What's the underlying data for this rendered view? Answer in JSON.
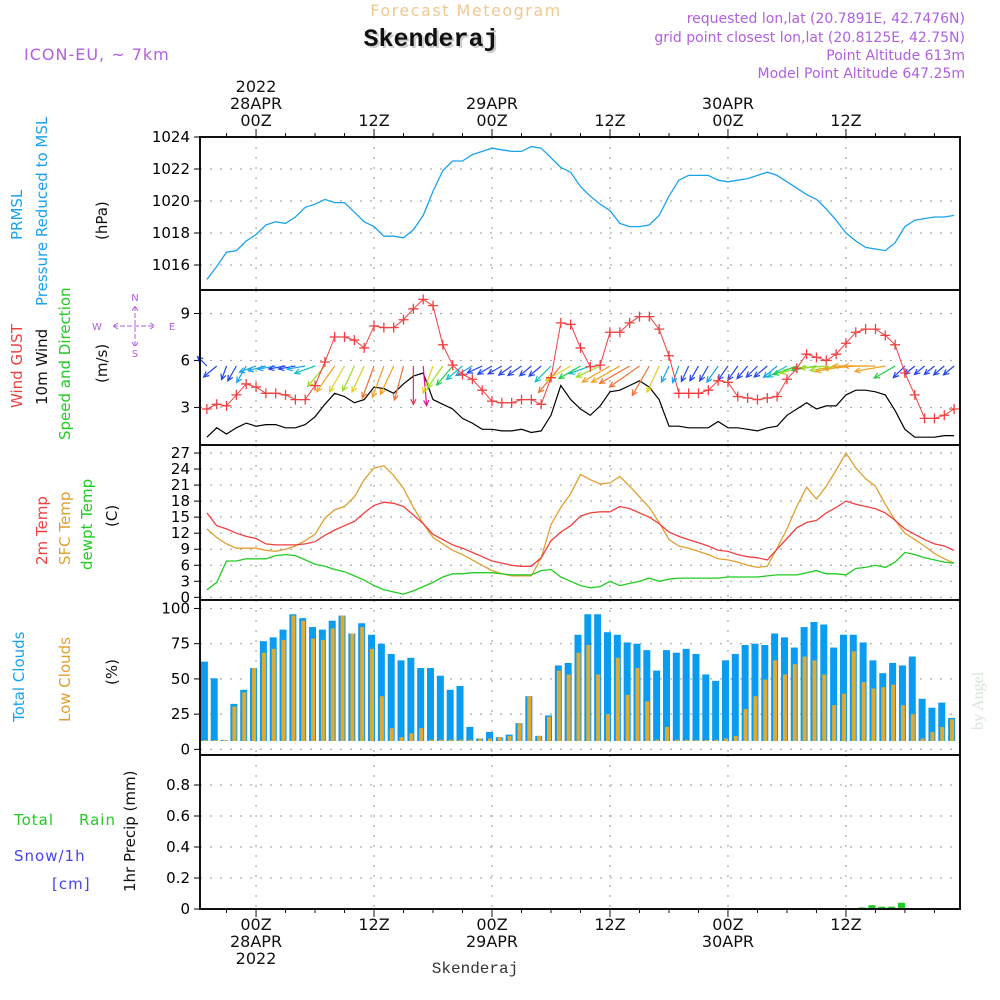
{
  "header": {
    "title": "Forecast Meteogram",
    "location": "Skenderaj",
    "model": "ICON-EU, ~ 7km",
    "requested": "requested lon,lat (20.7891E, 42.7476N)",
    "gridpoint": "grid point closest lon,lat (20.8125E, 42.75N)",
    "altitude": "Point Altitude 613m",
    "model_altitude": "Model Point Altitude 647.25m",
    "footer_location": "Skenderaj",
    "credit": "by Angel"
  },
  "colors": {
    "pressure": "#1aa3ec",
    "gust": "#f04040",
    "wind10m": "#000000",
    "temp2m": "#f04040",
    "sfc": "#e0a030",
    "dewpt": "#22cc22",
    "total_clouds": "#0a9cf0",
    "low_clouds": "#e0aa30",
    "rain": "#22cc22",
    "snow": "#4444ee",
    "labels_purple": "#b060e0",
    "title_orange": "#f0c890"
  },
  "time_axis": {
    "top_labels": [
      {
        "hour": 0,
        "lines": [
          "2022",
          "28APR",
          "00Z"
        ]
      },
      {
        "hour": 12,
        "lines": [
          "12Z"
        ]
      },
      {
        "hour": 24,
        "lines": [
          "29APR",
          "00Z"
        ]
      },
      {
        "hour": 36,
        "lines": [
          "12Z"
        ]
      },
      {
        "hour": 48,
        "lines": [
          "30APR",
          "00Z"
        ]
      },
      {
        "hour": 60,
        "lines": [
          "12Z"
        ]
      }
    ],
    "bottom_labels": [
      {
        "hour": 0,
        "lines": [
          "00Z",
          "28APR",
          "2022"
        ]
      },
      {
        "hour": 12,
        "lines": [
          "12Z"
        ]
      },
      {
        "hour": 24,
        "lines": [
          "00Z",
          "29APR"
        ]
      },
      {
        "hour": 36,
        "lines": [
          "12Z"
        ]
      },
      {
        "hour": 48,
        "lines": [
          "00Z",
          "30APR"
        ]
      },
      {
        "hour": 60,
        "lines": [
          "12Z"
        ]
      }
    ],
    "range_hours": [
      -5.7,
      71.6
    ],
    "first_hour": -5
  },
  "chart_data": [
    {
      "type": "line",
      "title": "PRMSL Pressure Reduced to MSL",
      "ylabel": "(hPa)",
      "ylim": [
        1014.6,
        1024
      ],
      "yticks": [
        1016,
        1018,
        1020,
        1022,
        1024
      ],
      "grid": true,
      "series": [
        {
          "name": "PRMSL",
          "values": [
            1015.1,
            1015.9,
            1016.8,
            1016.9,
            1017.5,
            1017.9,
            1018.5,
            1018.7,
            1018.6,
            1019.0,
            1019.6,
            1019.8,
            1020.1,
            1019.9,
            1019.9,
            1019.3,
            1018.7,
            1018.4,
            1017.8,
            1017.8,
            1017.7,
            1018.2,
            1019.1,
            1020.6,
            1021.9,
            1022.5,
            1022.5,
            1022.9,
            1023.1,
            1023.3,
            1023.2,
            1023.1,
            1023.1,
            1023.4,
            1023.3,
            1022.7,
            1022.1,
            1021.8,
            1020.9,
            1020.3,
            1019.8,
            1019.4,
            1018.6,
            1018.4,
            1018.4,
            1018.5,
            1019.1,
            1020.3,
            1021.3,
            1021.6,
            1021.6,
            1021.6,
            1021.3,
            1021.2,
            1021.3,
            1021.4,
            1021.6,
            1021.8,
            1021.6,
            1021.2,
            1020.8,
            1020.4,
            1020.1,
            1019.5,
            1018.8,
            1018.0,
            1017.5,
            1017.1,
            1017.0,
            1016.9,
            1017.4,
            1018.4,
            1018.8,
            1018.9,
            1019.0,
            1019.0,
            1019.1
          ]
        }
      ]
    },
    {
      "type": "line",
      "title": "Wind GUST / 10m Wind Speed and Direction",
      "ylabel": "(m/s)",
      "ylim": [
        0.6,
        10.5
      ],
      "yticks": [
        3,
        6,
        9
      ],
      "grid": true,
      "compass": {
        "n": "N",
        "s": "S",
        "w": "W",
        "e": "E"
      },
      "series": [
        {
          "name": "Wind GUST",
          "values": [
            2.9,
            3.2,
            3.1,
            3.8,
            4.5,
            4.3,
            3.9,
            3.9,
            3.8,
            3.5,
            3.5,
            4.4,
            5.9,
            7.5,
            7.5,
            7.3,
            6.8,
            8.2,
            8.1,
            8.1,
            8.6,
            9.3,
            9.9,
            9.5,
            7.0,
            5.7,
            5.1,
            4.8,
            4.1,
            3.4,
            3.3,
            3.3,
            3.5,
            3.5,
            3.2,
            4.9,
            8.4,
            8.3,
            6.8,
            5.6,
            5.7,
            7.8,
            7.8,
            8.4,
            8.8,
            8.8,
            8.0,
            6.3,
            3.9,
            3.9,
            3.9,
            4.1,
            4.7,
            4.6,
            3.7,
            3.6,
            3.5,
            3.6,
            3.7,
            4.8,
            5.5,
            6.4,
            6.2,
            6.0,
            6.4,
            7.1,
            7.8,
            8.0,
            8.0,
            7.6,
            7.0,
            5.2,
            3.8,
            2.3,
            2.3,
            2.5,
            2.9
          ]
        },
        {
          "name": "10m Wind",
          "values": [
            1.1,
            1.7,
            1.3,
            1.7,
            2.0,
            1.8,
            1.9,
            1.9,
            1.7,
            1.7,
            1.9,
            2.4,
            3.2,
            3.9,
            3.7,
            3.3,
            3.5,
            4.3,
            4.2,
            3.9,
            4.5,
            5.0,
            5.2,
            3.5,
            3.2,
            2.9,
            2.3,
            2.0,
            1.6,
            1.6,
            1.5,
            1.5,
            1.6,
            1.4,
            1.5,
            2.5,
            4.4,
            3.5,
            2.9,
            2.5,
            3.1,
            4.0,
            4.1,
            4.4,
            4.7,
            4.3,
            3.5,
            1.8,
            1.8,
            1.7,
            1.7,
            1.7,
            2.1,
            1.7,
            1.7,
            1.6,
            1.5,
            1.7,
            1.8,
            2.5,
            2.9,
            3.3,
            2.9,
            3.1,
            3.1,
            3.8,
            4.1,
            4.1,
            4.0,
            3.8,
            2.8,
            1.6,
            1.1,
            1.1,
            1.1,
            1.2,
            1.2
          ]
        },
        {
          "name": "Wind direction (deg, from)",
          "values": [
            135,
            50,
            20,
            30,
            30,
            70,
            75,
            80,
            80,
            80,
            80,
            70,
            40,
            35,
            30,
            25,
            25,
            20,
            20,
            25,
            15,
            0,
            355,
            20,
            35,
            40,
            50,
            60,
            65,
            60,
            60,
            55,
            55,
            50,
            50,
            45,
            40,
            60,
            60,
            70,
            65,
            60,
            60,
            60,
            55,
            30,
            25,
            25,
            20,
            25,
            30,
            30,
            35,
            35,
            35,
            40,
            45,
            50,
            50,
            60,
            70,
            75,
            80,
            85,
            80,
            80,
            85,
            90,
            90,
            80,
            60,
            45,
            50,
            50,
            50,
            50,
            50
          ]
        }
      ]
    },
    {
      "type": "line",
      "title": "2m Temp / SFC Temp / dewpt Temp",
      "ylabel": "(C)",
      "ylim": [
        -0.5,
        28.5
      ],
      "yticks": [
        0,
        3,
        6,
        9,
        12,
        15,
        18,
        21,
        24,
        27
      ],
      "grid": true,
      "series": [
        {
          "name": "2m Temp",
          "values": [
            15.8,
            13.4,
            12.8,
            12.0,
            11.4,
            11.0,
            10.0,
            9.8,
            9.8,
            9.8,
            10.0,
            10.4,
            11.6,
            12.6,
            13.4,
            14.2,
            15.8,
            17.2,
            17.8,
            17.6,
            17.0,
            15.4,
            13.8,
            11.8,
            10.8,
            9.8,
            9.2,
            8.4,
            7.6,
            6.8,
            6.4,
            6.0,
            5.8,
            5.8,
            7.4,
            10.6,
            12.2,
            13.4,
            15.2,
            15.8,
            16.0,
            16.0,
            17.0,
            16.6,
            15.8,
            15.0,
            13.8,
            12.2,
            11.4,
            10.8,
            10.2,
            9.6,
            8.8,
            8.6,
            8.0,
            7.6,
            7.4,
            7.0,
            9.0,
            11.0,
            13.0,
            14.0,
            14.4,
            15.8,
            16.8,
            18.0,
            17.4,
            17.0,
            16.6,
            15.8,
            14.4,
            12.8,
            11.8,
            10.8,
            10.0,
            9.6,
            8.8
          ]
        },
        {
          "name": "SFC Temp",
          "values": [
            12.8,
            11.2,
            10.0,
            9.2,
            9.2,
            9.2,
            8.8,
            8.6,
            9.0,
            9.6,
            10.6,
            11.8,
            14.8,
            16.4,
            17.0,
            18.8,
            22.0,
            24.2,
            24.6,
            22.8,
            20.4,
            16.8,
            13.8,
            11.2,
            10.0,
            8.8,
            8.0,
            7.0,
            6.0,
            5.0,
            4.4,
            4.0,
            4.0,
            4.0,
            7.4,
            13.6,
            16.8,
            19.4,
            23.0,
            22.0,
            21.2,
            21.4,
            22.6,
            20.8,
            18.8,
            16.8,
            14.0,
            10.8,
            9.6,
            9.2,
            8.6,
            8.0,
            7.2,
            7.0,
            6.6,
            6.0,
            5.6,
            5.8,
            9.2,
            12.8,
            17.0,
            20.6,
            18.4,
            20.8,
            23.8,
            27.0,
            24.2,
            22.2,
            20.8,
            17.4,
            14.4,
            12.0,
            10.8,
            9.6,
            8.2,
            7.2,
            6.4
          ]
        },
        {
          "name": "dewpt Temp",
          "values": [
            1.4,
            2.8,
            6.8,
            6.8,
            7.2,
            7.2,
            7.2,
            7.8,
            8.0,
            7.8,
            7.0,
            6.2,
            5.8,
            5.2,
            4.8,
            4.0,
            3.2,
            2.2,
            1.4,
            1.0,
            0.6,
            1.2,
            2.0,
            2.8,
            3.8,
            4.4,
            4.4,
            4.6,
            4.6,
            4.6,
            4.4,
            4.2,
            4.2,
            4.2,
            5.0,
            5.2,
            3.8,
            3.0,
            2.2,
            1.8,
            2.0,
            3.0,
            2.2,
            2.6,
            3.0,
            3.6,
            3.0,
            3.4,
            3.6,
            3.6,
            3.6,
            3.6,
            3.6,
            3.8,
            3.8,
            3.8,
            3.8,
            4.0,
            4.2,
            4.2,
            4.2,
            4.6,
            5.0,
            4.4,
            4.4,
            4.2,
            5.4,
            5.6,
            6.0,
            5.6,
            6.6,
            8.4,
            8.0,
            7.4,
            7.0,
            6.6,
            6.4
          ]
        }
      ]
    },
    {
      "type": "bar",
      "title": "Total Clouds / Low Clouds",
      "ylabel": "(%)",
      "ylim": [
        -4,
        106
      ],
      "yticks": [
        0,
        25,
        50,
        75,
        100
      ],
      "grid": true,
      "series": [
        {
          "name": "Total Clouds",
          "values": [
            62,
            49,
            0,
            29,
            40,
            57,
            78,
            81,
            87,
            99,
            96,
            89,
            87,
            94,
            98,
            84,
            92,
            83,
            76,
            68,
            63,
            65,
            57,
            57,
            51,
            40,
            43,
            11,
            2,
            7,
            3,
            5,
            14,
            35,
            4,
            20,
            59,
            61,
            83,
            99,
            99,
            85,
            83,
            77,
            76,
            71,
            55,
            71,
            69,
            72,
            68,
            52,
            47,
            63,
            68,
            75,
            76,
            75,
            84,
            81,
            73,
            89,
            93,
            91,
            73,
            83,
            83,
            77,
            63,
            53,
            61,
            59,
            66,
            33,
            26,
            30,
            18
          ]
        },
        {
          "name": "Low Clouds",
          "values": [
            0,
            0,
            0,
            27,
            38,
            57,
            69,
            72,
            79,
            98,
            94,
            80,
            79,
            88,
            98,
            84,
            89,
            72,
            35,
            10,
            3,
            6,
            10,
            1,
            1,
            1,
            1,
            1,
            2,
            2,
            3,
            4,
            14,
            35,
            4,
            19,
            55,
            52,
            69,
            75,
            52,
            21,
            65,
            36,
            57,
            31,
            1,
            11,
            1,
            1,
            0,
            0,
            1,
            2,
            4,
            25,
            35,
            48,
            63,
            52,
            60,
            66,
            63,
            52,
            28,
            37,
            70,
            46,
            41,
            42,
            44,
            28,
            21,
            2,
            7,
            11,
            17
          ]
        }
      ]
    },
    {
      "type": "bar",
      "title": "1hr Precip (mm)",
      "legend": [
        "Total Rain",
        "Snow/1h [cm]"
      ],
      "ylabel": "1hr Precip (mm)",
      "ylim": [
        0,
        1.0
      ],
      "yticks": [
        0,
        0.2,
        0.4,
        0.6,
        0.8
      ],
      "ytick_labels": [
        "0",
        "0.2",
        "0.4",
        "0.6",
        "0.8"
      ],
      "grid": true,
      "series": [
        {
          "name": "Total Rain",
          "hours": [
            61,
            62,
            63,
            64,
            65,
            66
          ],
          "values": [
            0.005,
            0.01,
            0.025,
            0.015,
            0.015,
            0.04
          ]
        }
      ]
    }
  ],
  "panels": {
    "pressure_labels": [
      "PRMSL",
      "Pressure Reduced to MSL",
      "(hPa)"
    ],
    "wind_labels": [
      "Wind GUST",
      "10m Wind",
      "Speed and Direction",
      "(m/s)"
    ],
    "temp_labels": [
      "2m Temp",
      "SFC Temp",
      "dewpt Temp",
      "(C)"
    ],
    "cloud_labels": [
      "Total Clouds",
      "Low Clouds",
      "(%)"
    ],
    "precip_labels": [
      "Total",
      "Rain",
      "Snow/1h",
      "[cm]",
      "1hr Precip (mm)"
    ]
  }
}
